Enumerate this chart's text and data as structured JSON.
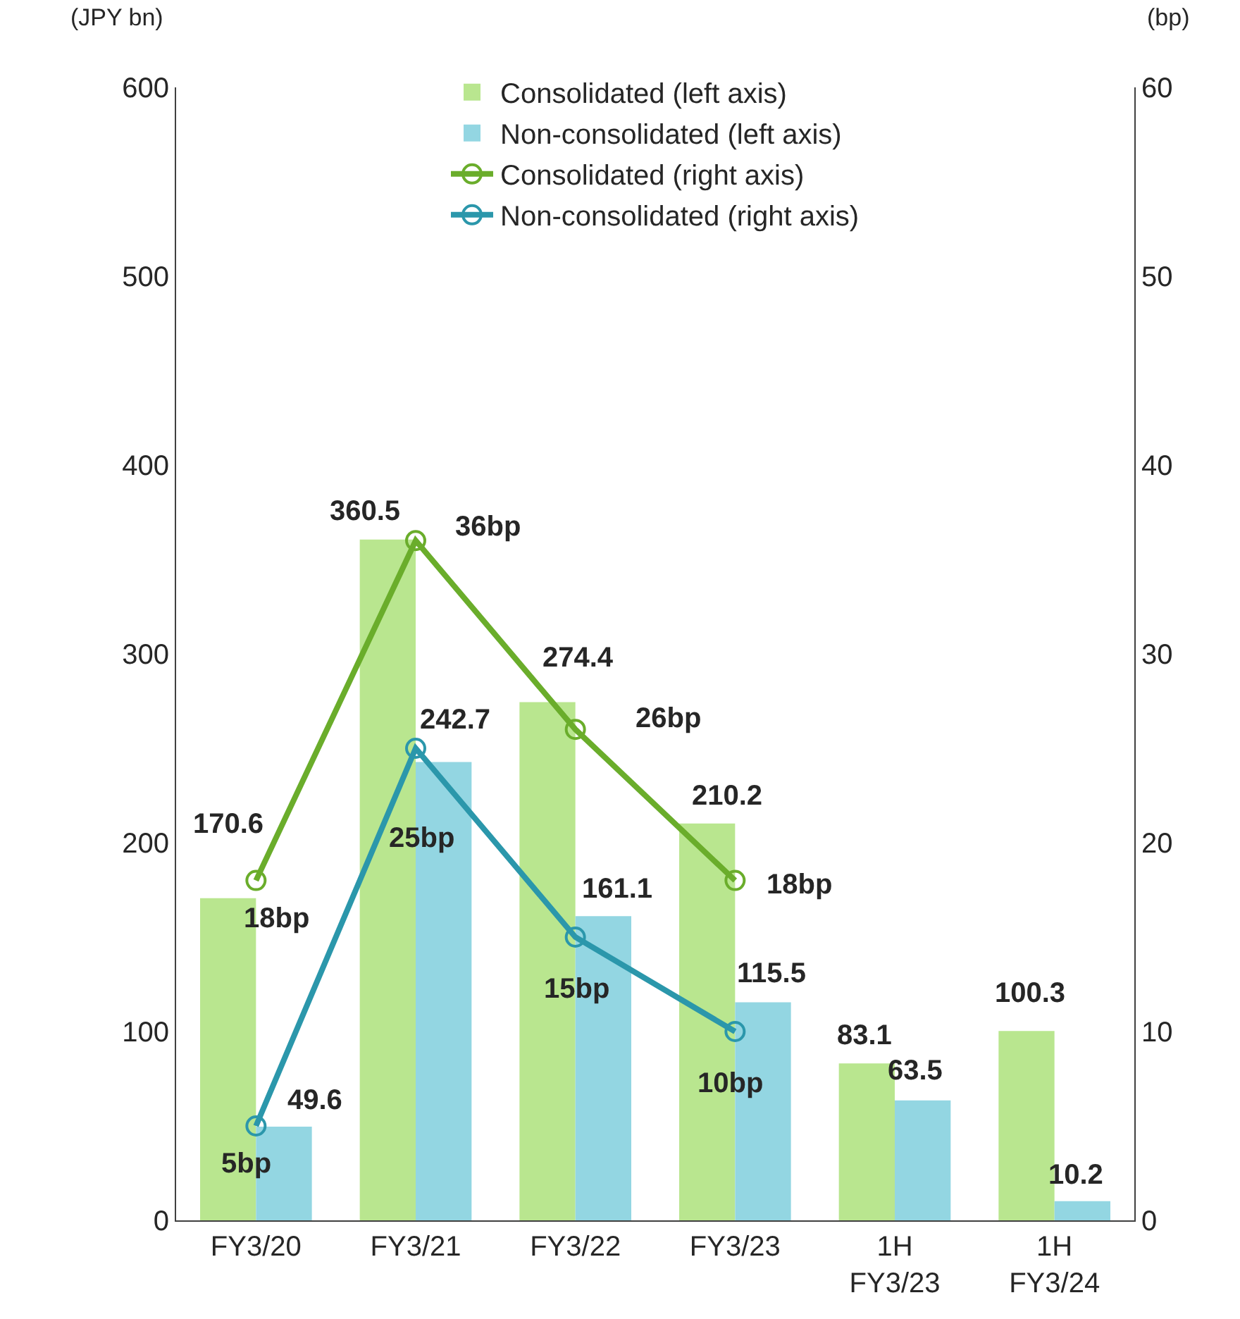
{
  "chart_data": {
    "type": "bar",
    "categories": [
      "FY3/20",
      "FY3/21",
      "FY3/22",
      "FY3/23",
      "1H\nFY3/23",
      "1H\nFY3/24"
    ],
    "ylabel": "(JPY bn)",
    "y2label": "(bp)",
    "series": [
      {
        "name": "Consolidated (left axis)",
        "color": "#b9e68f",
        "values": [
          170.6,
          360.5,
          274.4,
          210.2,
          83.1,
          100.3
        ]
      },
      {
        "name": "Non-consolidated (left axis)",
        "color": "#93d6e2",
        "values": [
          49.6,
          242.7,
          161.1,
          115.5,
          63.5,
          10.2
        ]
      },
      {
        "name": "Consolidated (right axis)",
        "type": "line",
        "axis": "y2",
        "color": "#6aad2b",
        "values": [
          18,
          36,
          26,
          18,
          null,
          null
        ],
        "value_labels": [
          "18bp",
          "36bp",
          "26bp",
          "18bp",
          null,
          null
        ]
      },
      {
        "name": "Non-consolidated (right axis)",
        "type": "line",
        "axis": "y2",
        "color": "#2b97ab",
        "values": [
          5,
          25,
          15,
          10,
          null,
          null
        ],
        "value_labels": [
          "5bp",
          "25bp",
          "15bp",
          "10bp",
          null,
          null
        ]
      }
    ],
    "data_labels": true,
    "ylim": [
      0,
      600
    ],
    "yticks": [
      0,
      100,
      200,
      300,
      400,
      500,
      600
    ],
    "y2lim": [
      0,
      60
    ],
    "y2ticks": [
      0,
      10,
      20,
      30,
      40,
      50,
      60
    ],
    "legend": "top",
    "marker": "circle",
    "line_style": "solid"
  }
}
